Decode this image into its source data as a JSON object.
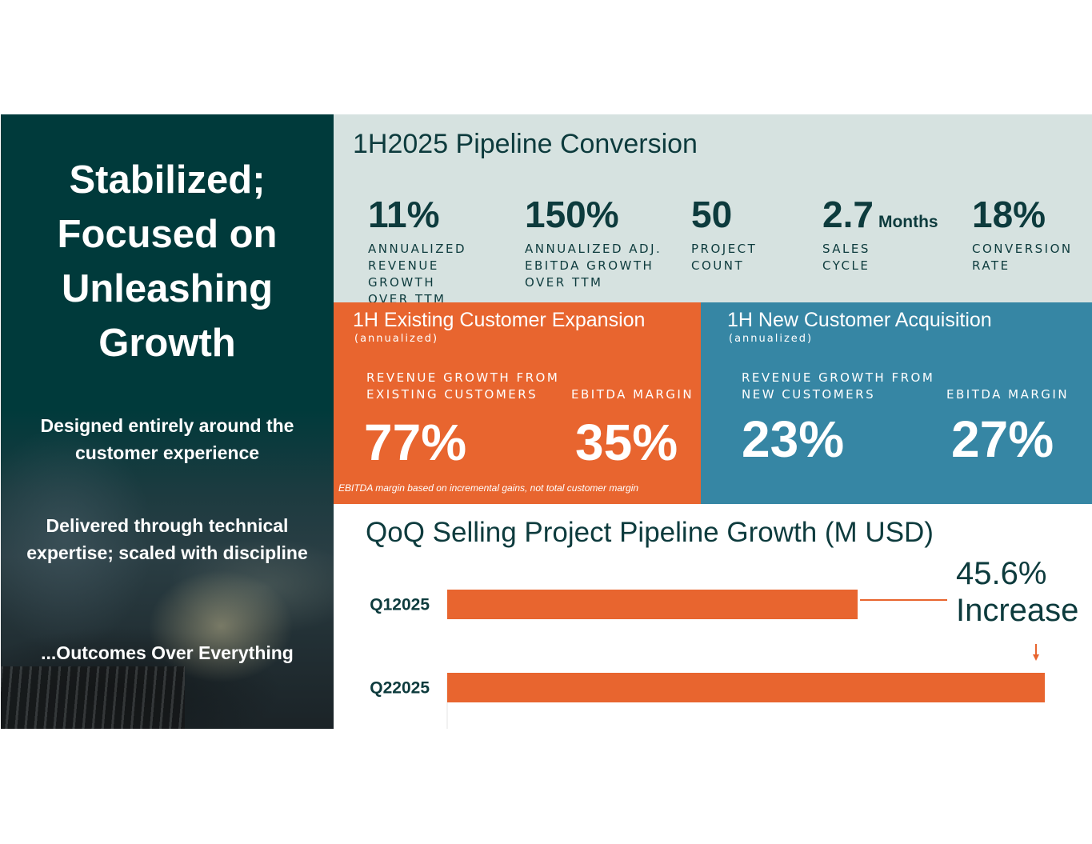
{
  "left": {
    "title": "Stabilized; Focused on Unleashing Growth",
    "sub1": "Designed entirely around the customer experience",
    "sub2": "Delivered through technical expertise; scaled with discipline",
    "sub3": "...Outcomes Over Everything"
  },
  "pipeline": {
    "title": "1H2025 Pipeline Conversion",
    "metrics": [
      {
        "value": "11%",
        "unit": "",
        "label": "ANNUALIZED\nREVENUE GROWTH\nOVER TTM"
      },
      {
        "value": "150%",
        "unit": "",
        "label": "ANNUALIZED ADJ.\nEBITDA GROWTH\nOVER TTM"
      },
      {
        "value": "50",
        "unit": "",
        "label": "PROJECT\nCOUNT"
      },
      {
        "value": "2.7",
        "unit": "Months",
        "label": "SALES\nCYCLE"
      },
      {
        "value": "18%",
        "unit": "",
        "label": "CONVERSION\nRATE"
      }
    ]
  },
  "existing": {
    "title": "1H Existing Customer Expansion",
    "note": "(annualized)",
    "rev_label": "REVENUE GROWTH FROM\nEXISTING CUSTOMERS",
    "rev_value": "77%",
    "margin_label": "EBITDA MARGIN",
    "margin_value": "35%",
    "footnote": "EBITDA margin based on incremental gains, not total customer margin"
  },
  "new": {
    "title": "1H New Customer Acquisition",
    "note": "(annualized)",
    "rev_label": "REVENUE GROWTH FROM\nNEW CUSTOMERS",
    "rev_value": "23%",
    "margin_label": "EBITDA MARGIN",
    "margin_value": "27%"
  },
  "chart": {
    "title": "QoQ Selling Project Pipeline Growth (M USD)",
    "increase_value": "45.6%",
    "increase_label": "Increase"
  },
  "chart_data": {
    "type": "bar",
    "orientation": "horizontal",
    "title": "QoQ Selling Project Pipeline Growth (M USD)",
    "categories": [
      "Q12025",
      "Q22025"
    ],
    "values": [
      100,
      145.6
    ],
    "annotation": "45.6% Increase",
    "xlabel": "",
    "ylabel": "",
    "xlim": [
      0,
      145.6
    ],
    "colors": {
      "bar": "#e8652f",
      "text": "#0d3b3d"
    }
  },
  "colors": {
    "dark_teal": "#003a3b",
    "light_gray": "#d6e2e0",
    "orange": "#e8652f",
    "blue": "#3686a4"
  }
}
